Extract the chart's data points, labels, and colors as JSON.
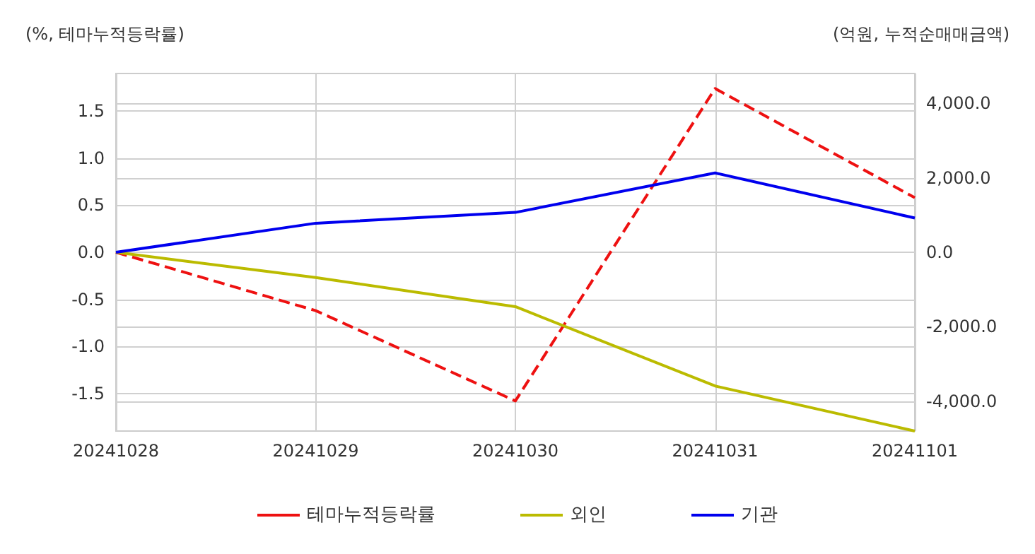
{
  "chart_data": {
    "type": "line",
    "ylabel": "(%, 테마누적등락률)",
    "y2label": "(억원, 누적순매매금액)",
    "categories": [
      "20241028",
      "20241029",
      "20241030",
      "20241031",
      "20241101"
    ],
    "series": [
      {
        "name": "테마누적등락률",
        "color": "#ee1111",
        "line_style": "dashed",
        "values": [
          0,
          -0.62,
          -1.58,
          1.74,
          0.58
        ]
      },
      {
        "name": "외인",
        "color": "#bbbb00",
        "axis": "y2",
        "values": [
          0,
          -680,
          -1460,
          -3590,
          -4800
        ]
      },
      {
        "name": "기관",
        "color": "#0000ee",
        "axis": "y2",
        "values": [
          0,
          780,
          1070,
          2130,
          920
        ]
      }
    ],
    "ylim": [
      -1.9,
      1.9
    ],
    "yticks": [
      {
        "value": -1.5,
        "label": "-1.5"
      },
      {
        "value": -1,
        "label": "-1.0"
      },
      {
        "value": -0.5,
        "label": "-0.5"
      },
      {
        "value": 0,
        "label": "0.0"
      },
      {
        "value": 0.5,
        "label": "0.5"
      },
      {
        "value": 1,
        "label": "1.0"
      },
      {
        "value": 1.5,
        "label": "1.5"
      }
    ],
    "y2lim": [
      -4800,
      4800
    ],
    "y2ticks": [
      {
        "value": -4000,
        "label": "-4,000.0"
      },
      {
        "value": -2000,
        "label": "-2,000.0"
      },
      {
        "value": 0,
        "label": "0.0"
      },
      {
        "value": 2000,
        "label": "2,000.0"
      },
      {
        "value": 4000,
        "label": "4,000.0"
      }
    ],
    "grid": true,
    "legend": "bottom",
    "marker": "none",
    "line_style": "solid"
  }
}
